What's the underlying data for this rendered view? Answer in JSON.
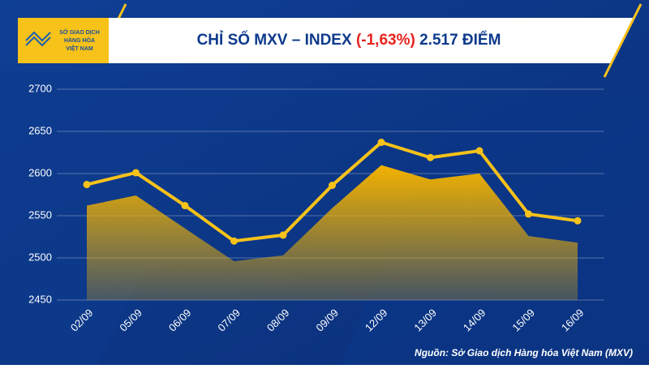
{
  "logo": {
    "lines": [
      "SỞ GIAO DỊCH",
      "HÀNG HÓA",
      "VIỆT NAM"
    ]
  },
  "chart_data": {
    "type": "line",
    "title": "CHỈ SỐ MXV – INDEX",
    "title_change": "(-1,63%)",
    "title_value": "2.517 ĐIỂM",
    "source": "Nguồn: Sở Giao dịch Hàng hóa Việt Nam (MXV)",
    "categories": [
      "02/09",
      "05/09",
      "06/09",
      "07/09",
      "08/09",
      "09/09",
      "12/09",
      "13/09",
      "14/09",
      "15/09",
      "16/09"
    ],
    "series": [
      {
        "type": "area",
        "color": "#e8a900",
        "values": [
          2562,
          2574,
          2535,
          2496,
          2503,
          2559,
          2610,
          2593,
          2600,
          2526,
          2518
        ]
      },
      {
        "type": "line",
        "color": "#f7c21a",
        "values": [
          2587,
          2601,
          2562,
          2520,
          2527,
          2586,
          2637,
          2619,
          2627,
          2552,
          2544
        ]
      }
    ],
    "ylim": [
      2450,
      2700
    ],
    "yticks": [
      2450,
      2500,
      2550,
      2600,
      2650,
      2700
    ],
    "grid": true
  }
}
